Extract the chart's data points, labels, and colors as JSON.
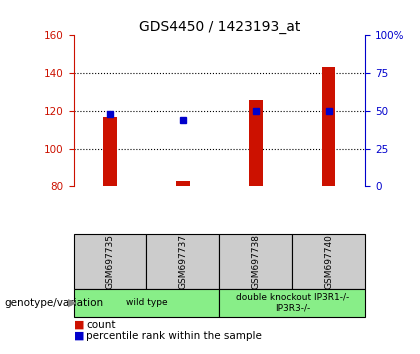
{
  "title": "GDS4450 / 1423193_at",
  "samples": [
    "GSM697735",
    "GSM697737",
    "GSM697738",
    "GSM697740"
  ],
  "count_values": [
    117,
    83,
    126,
    143
  ],
  "percentile_values": [
    48,
    44,
    50,
    50
  ],
  "ylim_left": [
    80,
    160
  ],
  "ylim_right": [
    0,
    100
  ],
  "yticks_left": [
    80,
    100,
    120,
    140,
    160
  ],
  "yticks_right": [
    0,
    25,
    50,
    75,
    100
  ],
  "ytick_labels_right": [
    "0",
    "25",
    "50",
    "75",
    "100%"
  ],
  "bar_color": "#cc1100",
  "dot_color": "#0000cc",
  "title_fontsize": 10,
  "left_axis_color": "#cc1100",
  "right_axis_color": "#0000cc",
  "genotype_label": "genotype/variation",
  "legend_count": "count",
  "legend_percentile": "percentile rank within the sample",
  "sample_box_color": "#cccccc",
  "group_box_color": "#88ee88",
  "bar_width": 0.18,
  "dot_size": 5,
  "gridline_values": [
    100,
    120,
    140
  ],
  "group_configs": [
    {
      "indices": [
        0,
        1
      ],
      "label": "wild type"
    },
    {
      "indices": [
        2,
        3
      ],
      "label": "double knockout IP3R1-/-\nIP3R3-/-"
    }
  ]
}
